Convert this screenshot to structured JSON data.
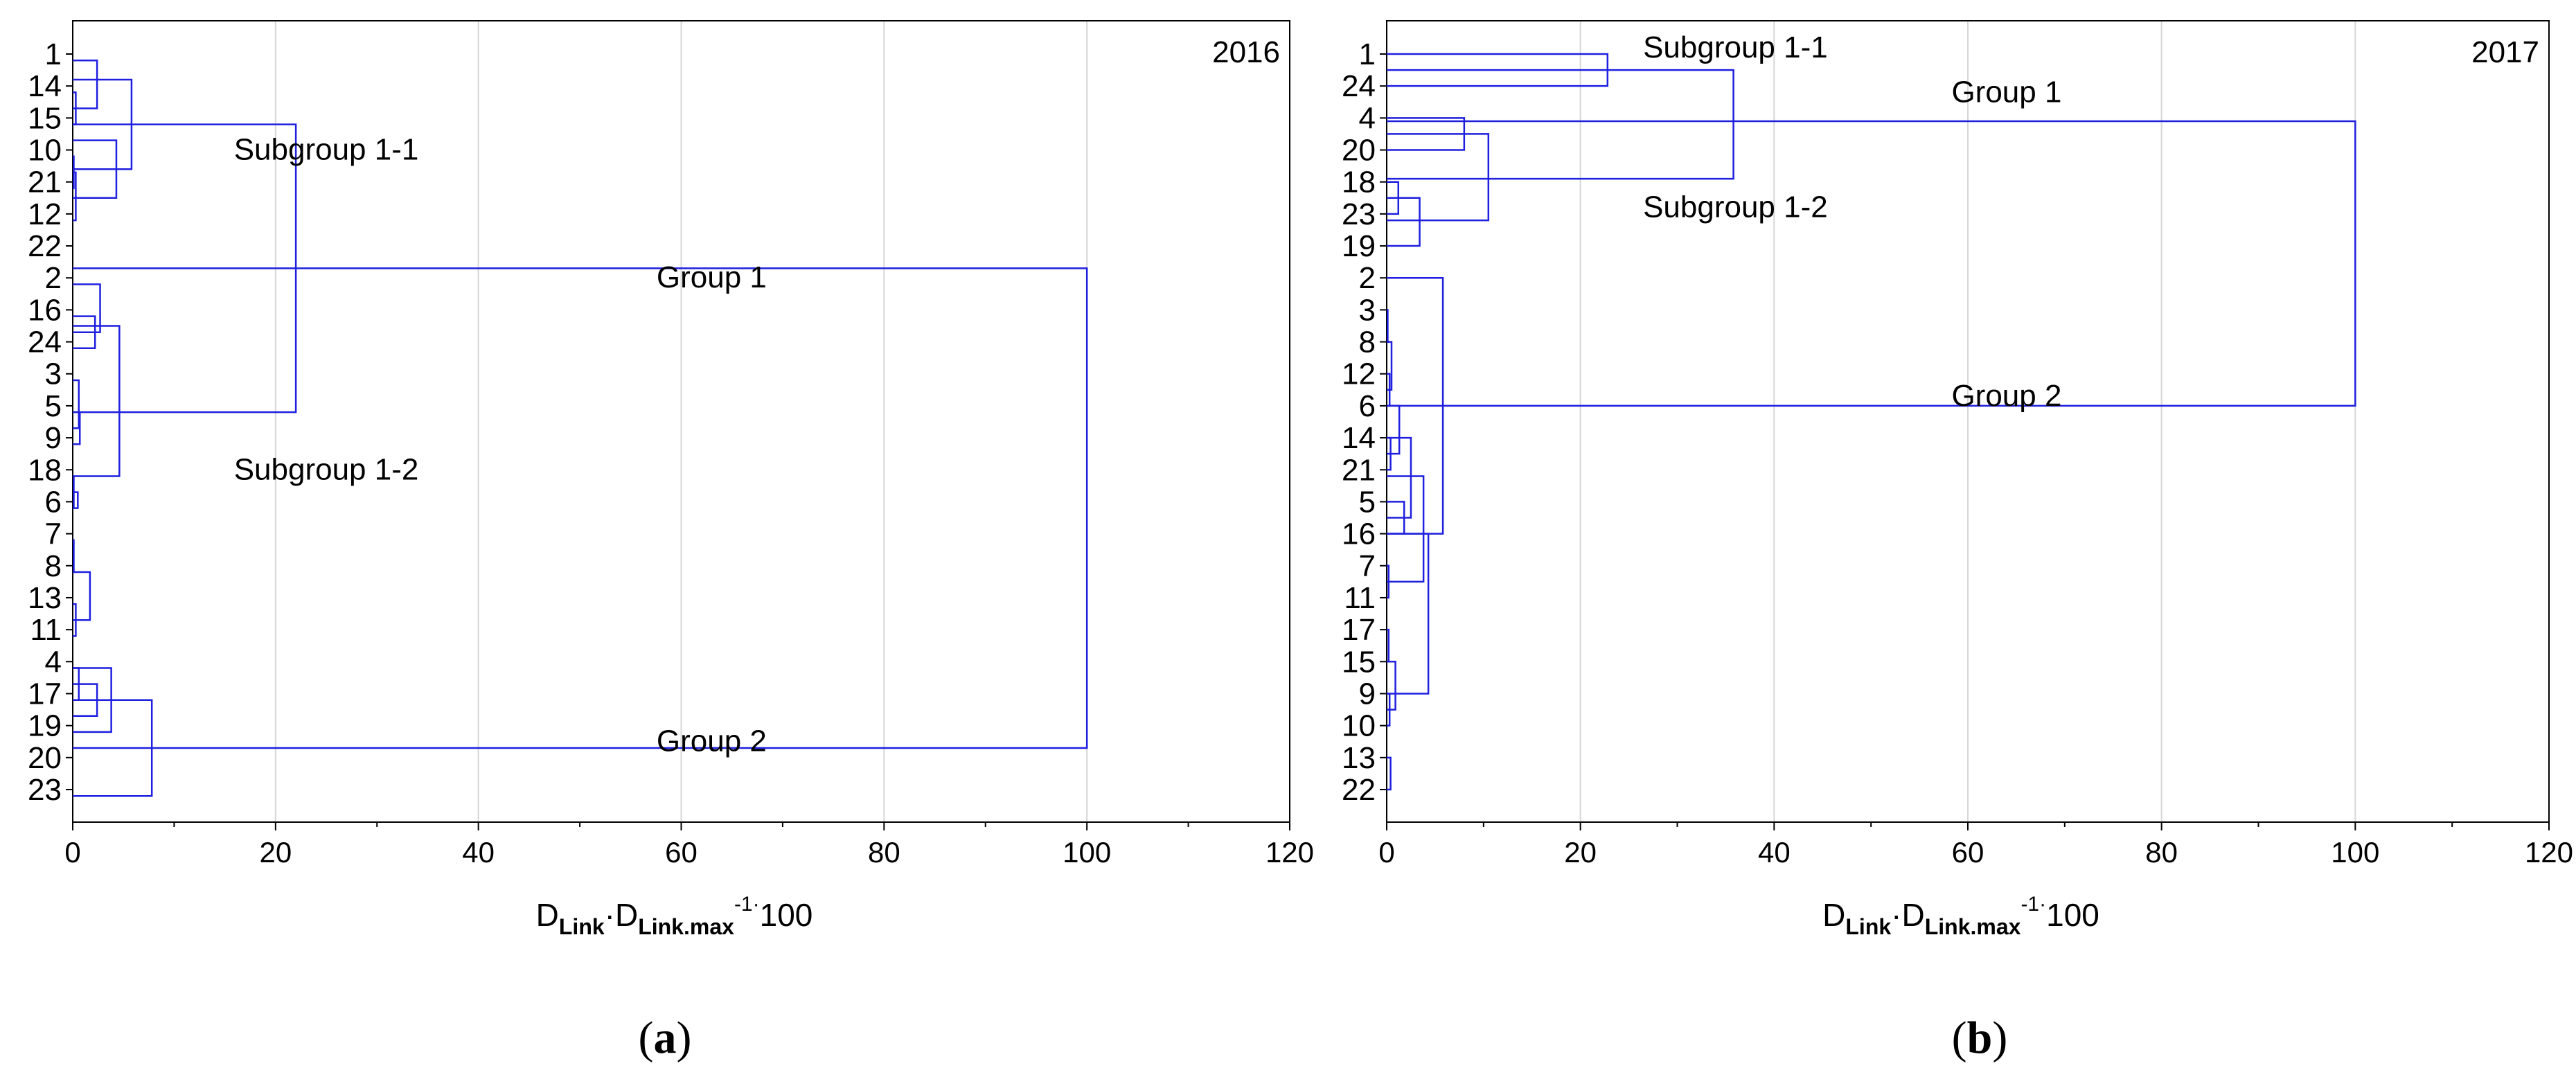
{
  "colors": {
    "link": "#1f1fe0",
    "grid": "#d6d6d6",
    "axis": "#000000"
  },
  "chart_data": [
    {
      "type": "dendrogram",
      "panel_letter": "a",
      "year": "2016",
      "xlabel": {
        "main": "D",
        "sub1": "Link",
        "dot": "·",
        "main2": "D",
        "sub2": "Link.max",
        "sup": "-1·",
        "tail": "100"
      },
      "xlim": [
        0,
        120
      ],
      "xticks": [
        "0",
        "20",
        "40",
        "60",
        "80",
        "100",
        "120"
      ],
      "grid": true,
      "leaves": [
        "1",
        "14",
        "15",
        "10",
        "21",
        "12",
        "22",
        "2",
        "16",
        "24",
        "3",
        "5",
        "9",
        "18",
        "6",
        "7",
        "8",
        "13",
        "11",
        "4",
        "17",
        "19",
        "20",
        "23"
      ],
      "links": [
        [
          15.2,
          16.2,
          0.1
        ],
        [
          13.2,
          14.2,
          0.1
        ],
        [
          3.2,
          4.2,
          0.1
        ],
        [
          1.2,
          2.2,
          0.3
        ],
        [
          17.2,
          18.2,
          0.3
        ],
        [
          5.2,
          3.7,
          0.3
        ],
        [
          14.2,
          13.7,
          0.5
        ],
        [
          11.2,
          12.2,
          0.7
        ],
        [
          19.2,
          20.2,
          0.6
        ],
        [
          10.2,
          11.7,
          0.6
        ],
        [
          16.2,
          17.7,
          1.7
        ],
        [
          0.2,
          1.7,
          2.4
        ],
        [
          8.2,
          9.2,
          2.2
        ],
        [
          19.7,
          20.7,
          2.4
        ],
        [
          7.2,
          8.7,
          2.7
        ],
        [
          19.2,
          21.2,
          3.8
        ],
        [
          2.7,
          4.5,
          4.3
        ],
        [
          8.5,
          13.2,
          4.6
        ],
        [
          0.8,
          3.6,
          5.8
        ],
        [
          20.2,
          23.2,
          7.8
        ],
        [
          2.2,
          11.2,
          22.0
        ],
        [
          6.7,
          21.7,
          100.0
        ]
      ],
      "annotations": [
        {
          "text": "Subgroup 1-1",
          "x": 25,
          "leaf": 3.0
        },
        {
          "text": "Group 1",
          "x": 63,
          "leaf": 7.0
        },
        {
          "text": "Subgroup 1-2",
          "x": 25,
          "leaf": 13.0
        },
        {
          "text": "Group 2",
          "x": 63,
          "leaf": 21.5
        }
      ]
    },
    {
      "type": "dendrogram",
      "panel_letter": "b",
      "year": "2017",
      "xlabel": {
        "main": "D",
        "sub1": "Link",
        "dot": "·",
        "main2": "D",
        "sub2": "Link.max",
        "sup": "-1·",
        "tail": "100"
      },
      "xlim": [
        0,
        120
      ],
      "xticks": [
        "0",
        "20",
        "40",
        "60",
        "80",
        "100",
        "120"
      ],
      "grid": true,
      "leaves": [
        "1",
        "24",
        "4",
        "20",
        "18",
        "23",
        "19",
        "2",
        "3",
        "8",
        "12",
        "6",
        "14",
        "21",
        "5",
        "16",
        "7",
        "11",
        "17",
        "15",
        "9",
        "10",
        "13",
        "22"
      ],
      "links": [
        [
          0.0,
          1.0,
          22.8
        ],
        [
          4.0,
          5.0,
          1.2
        ],
        [
          2.0,
          3.0,
          8.0
        ],
        [
          4.5,
          6.0,
          3.4
        ],
        [
          2.5,
          5.2,
          10.5
        ],
        [
          0.5,
          3.9,
          35.8
        ],
        [
          8.0,
          9.0,
          0.1
        ],
        [
          10.0,
          11.0,
          0.3
        ],
        [
          9.0,
          10.5,
          0.5
        ],
        [
          12.0,
          13.0,
          0.4
        ],
        [
          11.0,
          12.5,
          1.3
        ],
        [
          14.0,
          15.0,
          1.8
        ],
        [
          16.0,
          17.0,
          0.2
        ],
        [
          12.0,
          14.5,
          2.5
        ],
        [
          13.2,
          16.5,
          3.8
        ],
        [
          7.0,
          15.0,
          5.8
        ],
        [
          18.0,
          19.0,
          0.2
        ],
        [
          20.0,
          21.0,
          0.3
        ],
        [
          22.0,
          23.0,
          0.4
        ],
        [
          19.0,
          20.5,
          0.9
        ],
        [
          15.0,
          20.0,
          4.3
        ],
        [
          2.1,
          11.0,
          100.0
        ]
      ],
      "annotations": [
        {
          "text": "Subgroup 1-1",
          "x": 36,
          "leaf": -0.2
        },
        {
          "text": "Group 1",
          "x": 64,
          "leaf": 1.2
        },
        {
          "text": "Subgroup 1-2",
          "x": 36,
          "leaf": 4.8
        },
        {
          "text": "Group 2",
          "x": 64,
          "leaf": 10.7
        }
      ]
    }
  ]
}
